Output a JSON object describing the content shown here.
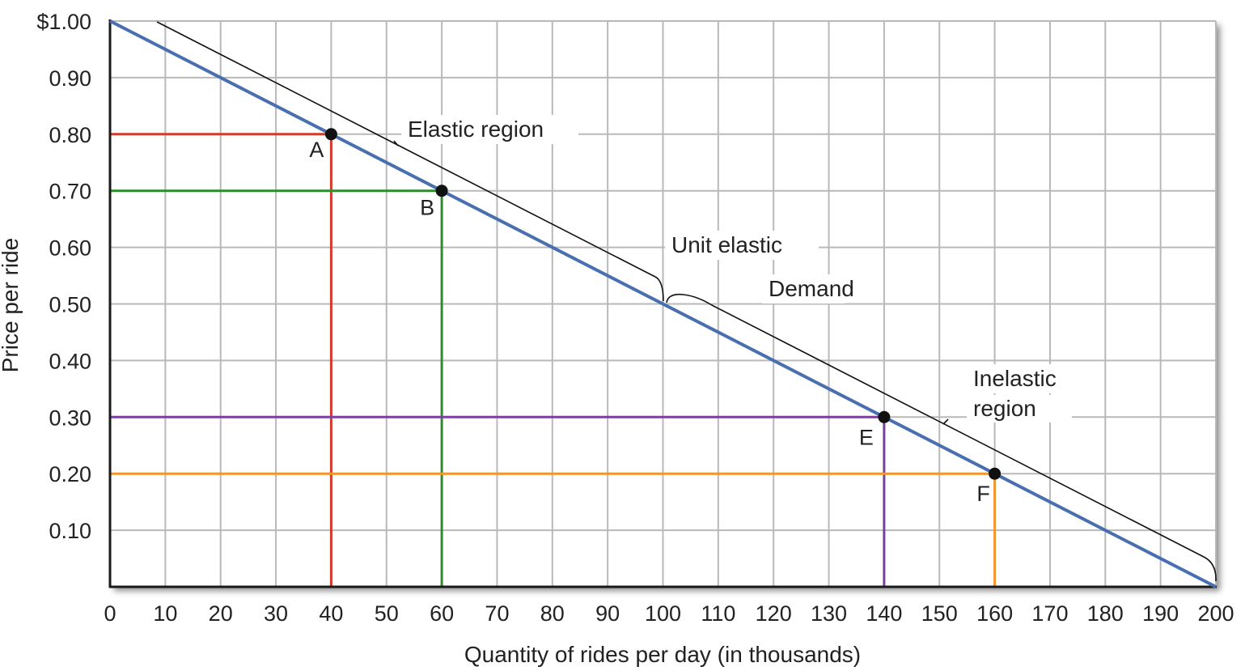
{
  "chart_data": {
    "type": "line",
    "xlabel": "Quantity of rides per day (in thousands)",
    "ylabel": "Price per ride",
    "xlim": [
      0,
      200
    ],
    "ylim": [
      0,
      1.0
    ],
    "x_ticks": [
      "0",
      "10",
      "20",
      "30",
      "40",
      "50",
      "60",
      "70",
      "80",
      "90",
      "100",
      "110",
      "120",
      "130",
      "140",
      "150",
      "160",
      "170",
      "180",
      "190",
      "200"
    ],
    "y_ticks": [
      "$1.00",
      "0.90",
      "0.80",
      "0.70",
      "0.60",
      "0.50",
      "0.40",
      "0.30",
      "0.20",
      "0.10"
    ],
    "grid": true,
    "series": [
      {
        "name": "Demand",
        "x": [
          0,
          200
        ],
        "y": [
          1.0,
          0.0
        ],
        "color": "#4a6fb0"
      }
    ],
    "points": [
      {
        "label": "A",
        "x": 40,
        "y": 0.8,
        "guide_color": "#d43a2b"
      },
      {
        "label": "B",
        "x": 60,
        "y": 0.7,
        "guide_color": "#2e8b2e"
      },
      {
        "label": "E",
        "x": 140,
        "y": 0.3,
        "guide_color": "#7b3fa0"
      },
      {
        "label": "F",
        "x": 160,
        "y": 0.2,
        "guide_color": "#f0962a"
      }
    ],
    "annotations": {
      "elastic": "Elastic region",
      "unit": "Unit elastic",
      "demand": "Demand",
      "inelastic_1": "Inelastic",
      "inelastic_2": "region"
    },
    "colors": {
      "grid": "#b9b9b9",
      "axis": "#1a1a1a",
      "bracket": "#111111",
      "point": "#111111"
    }
  }
}
